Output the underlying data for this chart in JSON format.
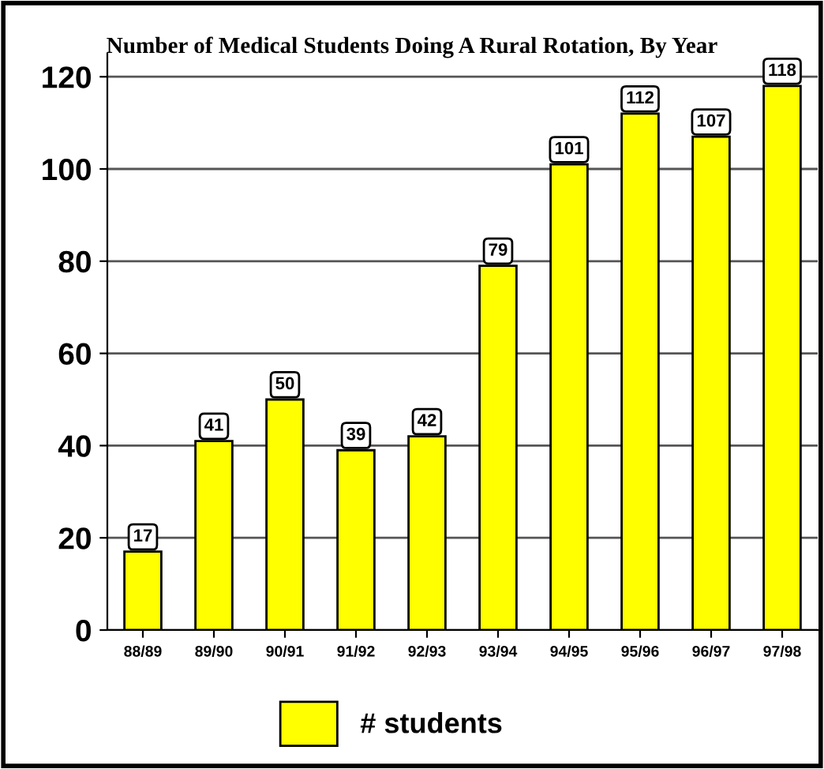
{
  "chart_data": {
    "type": "bar",
    "title": "Number of Medical Students Doing A Rural Rotation, By Year",
    "categories": [
      "88/89",
      "89/90",
      "90/91",
      "91/92",
      "92/93",
      "93/94",
      "94/95",
      "95/96",
      "96/97",
      "97/98"
    ],
    "series": [
      {
        "name": "# students",
        "color": "#ffff00",
        "values": [
          17,
          41,
          50,
          39,
          42,
          79,
          101,
          112,
          107,
          118
        ]
      }
    ],
    "ylim": [
      0,
      125
    ],
    "yticks": [
      0,
      20,
      40,
      60,
      80,
      100,
      120
    ],
    "grid": "y",
    "legend": "bottom",
    "data_labels": true
  }
}
